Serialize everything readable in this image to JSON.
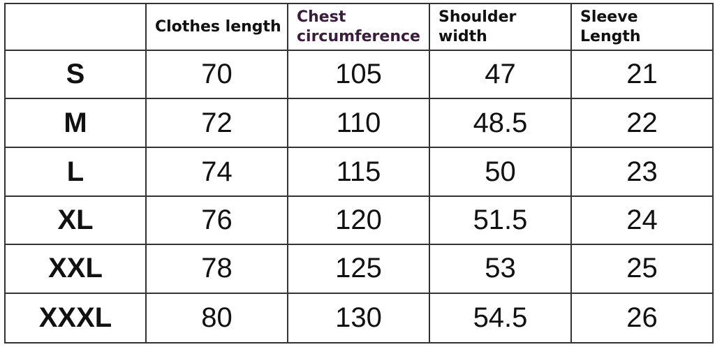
{
  "table": {
    "header": [
      [
        "Clothes length"
      ],
      [
        "Chest",
        "circumference"
      ],
      [
        "Shoulder",
        "width"
      ],
      [
        "Sleeve",
        "Length"
      ]
    ],
    "rows": [
      [
        "S",
        70,
        105,
        47,
        21
      ],
      [
        "M",
        72,
        110,
        48.5,
        22
      ],
      [
        "L",
        74,
        115,
        50,
        23
      ],
      [
        "XL",
        76,
        120,
        51.5,
        24
      ],
      [
        "XXL",
        78,
        125,
        53,
        25
      ],
      [
        "XXXL",
        80,
        130,
        54.5,
        26
      ]
    ]
  }
}
